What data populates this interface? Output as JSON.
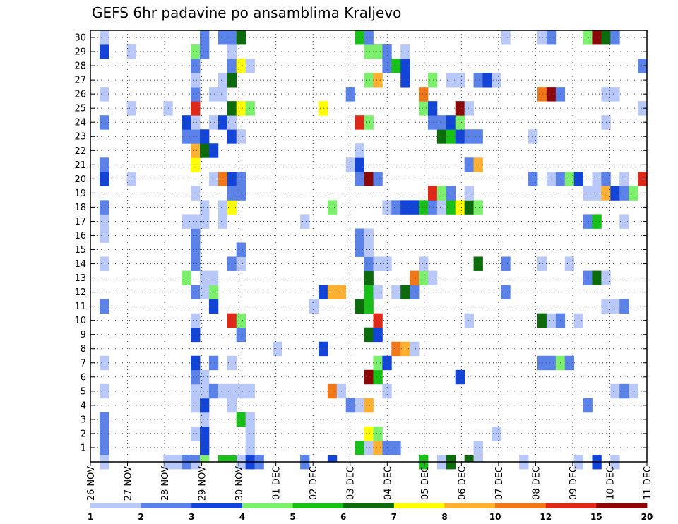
{
  "chart_data": {
    "type": "heatmap",
    "title": "GEFS 6hr padavine po ansamblima Kraljevo",
    "y_members": [
      "1",
      "2",
      "3",
      "4",
      "5",
      "6",
      "7",
      "8",
      "9",
      "10",
      "11",
      "12",
      "13",
      "14",
      "15",
      "16",
      "17",
      "18",
      "19",
      "20",
      "21",
      "22",
      "23",
      "24",
      "25",
      "26",
      "27",
      "28",
      "29",
      "30"
    ],
    "x_ticks": [
      "26 NOV",
      "27 NOV",
      "28 NOV",
      "29 NOV",
      "30 NOV",
      "01 DEC",
      "02 DEC",
      "03 DEC",
      "04 DEC",
      "05 DEC",
      "06 DEC",
      "07 DEC",
      "08 DEC",
      "09 DEC",
      "10 DEC",
      "11 DEC"
    ],
    "time_steps": 61,
    "grid": "dotted",
    "colorbar": {
      "labels": [
        "1",
        "2",
        "3",
        "4",
        "5",
        "6",
        "7",
        "8",
        "10",
        "12",
        "15",
        "20"
      ],
      "colors": [
        "#b8c8f8",
        "#5b82e8",
        "#1244d8",
        "#7cf06c",
        "#18c018",
        "#0c6c0c",
        "#ffff00",
        "#ffb030",
        "#f07818",
        "#e02818",
        "#8c0808"
      ]
    },
    "cells": [
      [
        0,
        1,
        1
      ],
      [
        0,
        11,
        1
      ],
      [
        0,
        8,
        1
      ],
      [
        0,
        9,
        1
      ],
      [
        0,
        16,
        1
      ],
      [
        0,
        17,
        3
      ],
      [
        0,
        18,
        2
      ],
      [
        0,
        23,
        2
      ],
      [
        0,
        36,
        5
      ],
      [
        0,
        38,
        1
      ],
      [
        0,
        39,
        6
      ],
      [
        0,
        47,
        1
      ],
      [
        0,
        53,
        1
      ],
      [
        0,
        55,
        3
      ],
      [
        0,
        57,
        1
      ],
      [
        0,
        10,
        2
      ],
      [
        1,
        1,
        2
      ],
      [
        1,
        12,
        3
      ],
      [
        1,
        17,
        1
      ],
      [
        1,
        29,
        5
      ],
      [
        1,
        30,
        1
      ],
      [
        1,
        31,
        8
      ],
      [
        1,
        32,
        2
      ],
      [
        1,
        33,
        2
      ],
      [
        1,
        42,
        1
      ],
      [
        2,
        1,
        2
      ],
      [
        2,
        11,
        1
      ],
      [
        2,
        12,
        3
      ],
      [
        2,
        17,
        1
      ],
      [
        2,
        30,
        7
      ],
      [
        2,
        31,
        4
      ],
      [
        2,
        44,
        1
      ],
      [
        3,
        1,
        2
      ],
      [
        3,
        16,
        5
      ],
      [
        3,
        17,
        1
      ],
      [
        3,
        12,
        1
      ],
      [
        4,
        11,
        1
      ],
      [
        4,
        12,
        3
      ],
      [
        4,
        15,
        1
      ],
      [
        4,
        28,
        2
      ],
      [
        4,
        29,
        1
      ],
      [
        4,
        30,
        8
      ],
      [
        4,
        54,
        2
      ],
      [
        5,
        1,
        1
      ],
      [
        5,
        11,
        1
      ],
      [
        5,
        12,
        1
      ],
      [
        5,
        13,
        2
      ],
      [
        5,
        14,
        1
      ],
      [
        5,
        15,
        1
      ],
      [
        5,
        16,
        1
      ],
      [
        5,
        17,
        1
      ],
      [
        5,
        26,
        9
      ],
      [
        5,
        27,
        1
      ],
      [
        5,
        32,
        1
      ],
      [
        5,
        57,
        1
      ],
      [
        5,
        58,
        2
      ],
      [
        5,
        59,
        1
      ],
      [
        6,
        11,
        2
      ],
      [
        6,
        12,
        1
      ],
      [
        6,
        30,
        11
      ],
      [
        6,
        31,
        5
      ],
      [
        6,
        40,
        3
      ],
      [
        7,
        1,
        1
      ],
      [
        7,
        11,
        3
      ],
      [
        7,
        13,
        2
      ],
      [
        7,
        15,
        1
      ],
      [
        7,
        31,
        4
      ],
      [
        7,
        32,
        3
      ],
      [
        7,
        49,
        2
      ],
      [
        7,
        50,
        2
      ],
      [
        7,
        51,
        4
      ],
      [
        7,
        52,
        2
      ],
      [
        8,
        20,
        1
      ],
      [
        8,
        25,
        3
      ],
      [
        8,
        33,
        9
      ],
      [
        8,
        34,
        8
      ],
      [
        8,
        35,
        1
      ],
      [
        9,
        11,
        3
      ],
      [
        9,
        16,
        2
      ],
      [
        9,
        30,
        6
      ],
      [
        9,
        31,
        3
      ],
      [
        10,
        11,
        1
      ],
      [
        10,
        15,
        10
      ],
      [
        10,
        16,
        4
      ],
      [
        10,
        31,
        10
      ],
      [
        10,
        41,
        1
      ],
      [
        10,
        49,
        6
      ],
      [
        10,
        50,
        1
      ],
      [
        10,
        51,
        2
      ],
      [
        10,
        53,
        1
      ],
      [
        11,
        1,
        2
      ],
      [
        11,
        13,
        3
      ],
      [
        11,
        24,
        1
      ],
      [
        11,
        29,
        6
      ],
      [
        11,
        30,
        5
      ],
      [
        11,
        56,
        1
      ],
      [
        11,
        57,
        1
      ],
      [
        11,
        58,
        2
      ],
      [
        12,
        11,
        2
      ],
      [
        12,
        12,
        1
      ],
      [
        12,
        13,
        4
      ],
      [
        12,
        25,
        3
      ],
      [
        12,
        26,
        8
      ],
      [
        12,
        27,
        8
      ],
      [
        12,
        30,
        5
      ],
      [
        12,
        31,
        1
      ],
      [
        12,
        33,
        1
      ],
      [
        12,
        34,
        6
      ],
      [
        12,
        35,
        2
      ],
      [
        12,
        45,
        2
      ],
      [
        13,
        10,
        4
      ],
      [
        13,
        12,
        1
      ],
      [
        13,
        13,
        1
      ],
      [
        13,
        30,
        6
      ],
      [
        13,
        35,
        9
      ],
      [
        13,
        36,
        4
      ],
      [
        13,
        37,
        1
      ],
      [
        13,
        54,
        2
      ],
      [
        13,
        55,
        6
      ],
      [
        13,
        56,
        1
      ],
      [
        14,
        1,
        1
      ],
      [
        14,
        11,
        2
      ],
      [
        14,
        15,
        2
      ],
      [
        14,
        16,
        1
      ],
      [
        14,
        30,
        2
      ],
      [
        14,
        31,
        1
      ],
      [
        14,
        32,
        1
      ],
      [
        14,
        36,
        1
      ],
      [
        14,
        42,
        6
      ],
      [
        14,
        45,
        2
      ],
      [
        14,
        49,
        1
      ],
      [
        14,
        52,
        1
      ],
      [
        15,
        11,
        2
      ],
      [
        15,
        16,
        2
      ],
      [
        15,
        29,
        2
      ],
      [
        15,
        30,
        1
      ],
      [
        16,
        1,
        1
      ],
      [
        16,
        11,
        2
      ],
      [
        16,
        29,
        2
      ],
      [
        16,
        30,
        1
      ],
      [
        17,
        1,
        1
      ],
      [
        17,
        10,
        1
      ],
      [
        17,
        11,
        1
      ],
      [
        17,
        12,
        1
      ],
      [
        17,
        14,
        1
      ],
      [
        17,
        23,
        1
      ],
      [
        17,
        54,
        2
      ],
      [
        17,
        55,
        5
      ],
      [
        17,
        58,
        1
      ],
      [
        18,
        1,
        2
      ],
      [
        18,
        12,
        1
      ],
      [
        18,
        14,
        1
      ],
      [
        18,
        15,
        7
      ],
      [
        18,
        26,
        4
      ],
      [
        18,
        32,
        1
      ],
      [
        18,
        33,
        2
      ],
      [
        18,
        34,
        3
      ],
      [
        18,
        35,
        3
      ],
      [
        18,
        36,
        5
      ],
      [
        18,
        37,
        2
      ],
      [
        18,
        38,
        1
      ],
      [
        18,
        39,
        5
      ],
      [
        18,
        40,
        7
      ],
      [
        18,
        41,
        6
      ],
      [
        18,
        42,
        4
      ],
      [
        19,
        11,
        1
      ],
      [
        19,
        15,
        2
      ],
      [
        19,
        16,
        2
      ],
      [
        19,
        37,
        10
      ],
      [
        19,
        38,
        4
      ],
      [
        19,
        39,
        2
      ],
      [
        19,
        41,
        1
      ],
      [
        19,
        54,
        1
      ],
      [
        19,
        55,
        1
      ],
      [
        19,
        56,
        8
      ],
      [
        19,
        57,
        3
      ],
      [
        19,
        58,
        2
      ],
      [
        19,
        59,
        4
      ],
      [
        20,
        1,
        3
      ],
      [
        20,
        4,
        1
      ],
      [
        20,
        13,
        1
      ],
      [
        20,
        14,
        9
      ],
      [
        20,
        15,
        3
      ],
      [
        20,
        16,
        2
      ],
      [
        20,
        29,
        2
      ],
      [
        20,
        30,
        11
      ],
      [
        20,
        31,
        2
      ],
      [
        20,
        48,
        2
      ],
      [
        20,
        50,
        1
      ],
      [
        20,
        51,
        2
      ],
      [
        20,
        52,
        4
      ],
      [
        20,
        53,
        3
      ],
      [
        20,
        55,
        1
      ],
      [
        20,
        56,
        2
      ],
      [
        20,
        58,
        1
      ],
      [
        20,
        60,
        10
      ],
      [
        21,
        1,
        2
      ],
      [
        21,
        11,
        7
      ],
      [
        21,
        28,
        1
      ],
      [
        21,
        29,
        3
      ],
      [
        21,
        41,
        2
      ],
      [
        21,
        42,
        8
      ],
      [
        22,
        11,
        8
      ],
      [
        22,
        12,
        6
      ],
      [
        22,
        13,
        3
      ],
      [
        22,
        29,
        1
      ],
      [
        23,
        10,
        2
      ],
      [
        23,
        11,
        2
      ],
      [
        23,
        12,
        3
      ],
      [
        23,
        15,
        3
      ],
      [
        23,
        16,
        1
      ],
      [
        23,
        38,
        6
      ],
      [
        23,
        39,
        5
      ],
      [
        23,
        40,
        3
      ],
      [
        23,
        41,
        2
      ],
      [
        23,
        42,
        2
      ],
      [
        23,
        48,
        1
      ],
      [
        24,
        1,
        2
      ],
      [
        24,
        10,
        3
      ],
      [
        24,
        11,
        1
      ],
      [
        24,
        13,
        1
      ],
      [
        24,
        14,
        3
      ],
      [
        24,
        15,
        1
      ],
      [
        24,
        29,
        10
      ],
      [
        24,
        30,
        4
      ],
      [
        24,
        37,
        2
      ],
      [
        24,
        38,
        2
      ],
      [
        24,
        39,
        3
      ],
      [
        24,
        40,
        4
      ],
      [
        24,
        56,
        1
      ],
      [
        25,
        4,
        1
      ],
      [
        25,
        8,
        1
      ],
      [
        25,
        11,
        10
      ],
      [
        25,
        15,
        6
      ],
      [
        25,
        16,
        7
      ],
      [
        25,
        17,
        4
      ],
      [
        25,
        25,
        7
      ],
      [
        25,
        36,
        4
      ],
      [
        25,
        37,
        3
      ],
      [
        25,
        40,
        11
      ],
      [
        25,
        41,
        1
      ],
      [
        25,
        60,
        1
      ],
      [
        26,
        1,
        1
      ],
      [
        26,
        11,
        2
      ],
      [
        26,
        13,
        1
      ],
      [
        26,
        14,
        1
      ],
      [
        26,
        28,
        2
      ],
      [
        26,
        36,
        9
      ],
      [
        26,
        49,
        9
      ],
      [
        26,
        50,
        11
      ],
      [
        26,
        51,
        2
      ],
      [
        26,
        56,
        1
      ],
      [
        26,
        57,
        1
      ],
      [
        27,
        11,
        1
      ],
      [
        27,
        14,
        1
      ],
      [
        27,
        15,
        6
      ],
      [
        27,
        30,
        4
      ],
      [
        27,
        31,
        8
      ],
      [
        27,
        34,
        3
      ],
      [
        27,
        37,
        4
      ],
      [
        27,
        39,
        1
      ],
      [
        27,
        40,
        1
      ],
      [
        27,
        42,
        2
      ],
      [
        27,
        43,
        3
      ],
      [
        27,
        44,
        1
      ],
      [
        28,
        11,
        2
      ],
      [
        28,
        15,
        2
      ],
      [
        28,
        16,
        7
      ],
      [
        28,
        17,
        1
      ],
      [
        28,
        32,
        2
      ],
      [
        28,
        33,
        5
      ],
      [
        28,
        34,
        3
      ],
      [
        28,
        60,
        2
      ],
      [
        29,
        1,
        3
      ],
      [
        29,
        4,
        1
      ],
      [
        29,
        11,
        4
      ],
      [
        29,
        12,
        2
      ],
      [
        29,
        15,
        1
      ],
      [
        29,
        30,
        4
      ],
      [
        29,
        31,
        4
      ],
      [
        29,
        32,
        2
      ],
      [
        29,
        34,
        1
      ],
      [
        30,
        1,
        1
      ],
      [
        30,
        12,
        2
      ],
      [
        30,
        14,
        2
      ],
      [
        30,
        15,
        2
      ],
      [
        30,
        16,
        6
      ],
      [
        30,
        29,
        5
      ],
      [
        30,
        30,
        2
      ],
      [
        30,
        45,
        1
      ],
      [
        30,
        49,
        1
      ],
      [
        30,
        50,
        2
      ],
      [
        30,
        54,
        4
      ],
      [
        30,
        55,
        11
      ],
      [
        30,
        56,
        6
      ],
      [
        30,
        57,
        2
      ],
      [
        -1,
        11,
        2
      ],
      [
        -1,
        12,
        4
      ],
      [
        -1,
        14,
        5
      ],
      [
        -1,
        15,
        5
      ],
      [
        -1,
        26,
        3
      ],
      [
        -1,
        41,
        6
      ],
      [
        -1,
        42,
        1
      ]
    ]
  }
}
